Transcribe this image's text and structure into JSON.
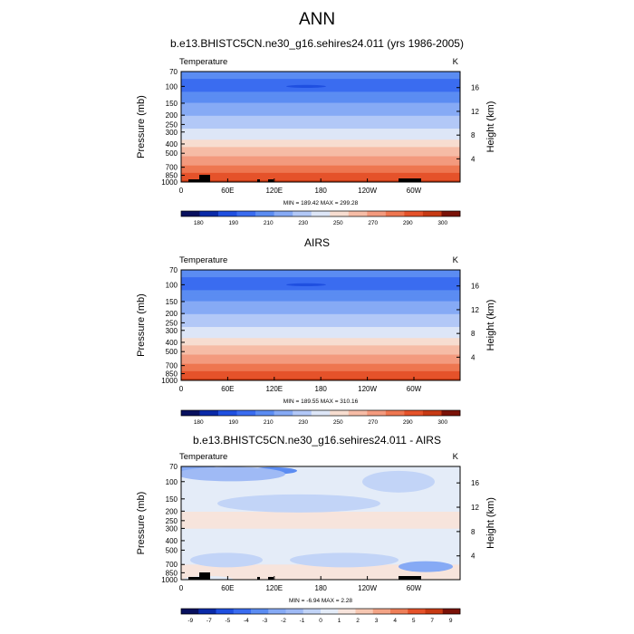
{
  "page_title": "ANN",
  "chart_data": [
    {
      "type": "heatmap",
      "title": "b.e13.BHISTC5CN.ne30_g16.sehires24.011 (yrs 1986-2005)",
      "variable": "Temperature",
      "units": "K",
      "ylabel": "Pressure (mb)",
      "y2label": "Height (km)",
      "x_ticks": [
        "0",
        "60E",
        "120E",
        "180",
        "120W",
        "60W"
      ],
      "p_ticks": [
        70,
        100,
        150,
        200,
        250,
        300,
        400,
        500,
        700,
        850,
        1000
      ],
      "h_ticks": [
        4,
        8,
        12,
        16
      ],
      "p_range": [
        70,
        1000
      ],
      "stats": "MIN = 189.42  MAX = 299.28",
      "colorbar_levels": [
        180,
        185,
        190,
        200,
        210,
        220,
        230,
        240,
        250,
        260,
        270,
        280,
        290,
        295,
        300
      ],
      "colorbar_labels": [
        "180",
        "190",
        "210",
        "230",
        "250",
        "270",
        "290",
        "300"
      ],
      "colors": [
        "#08105e",
        "#0a2aa8",
        "#1f4fe0",
        "#3a6cf0",
        "#5b8cf2",
        "#86aaf5",
        "#b2c8f7",
        "#dde6f7",
        "#f7ddd0",
        "#f6bca6",
        "#f39a7e",
        "#ee7650",
        "#e5522a",
        "#c73a14",
        "#7a1208"
      ],
      "profile_levels_mb": [
        70,
        100,
        150,
        200,
        250,
        300,
        400,
        500,
        700,
        850,
        1000
      ],
      "profile_values": [
        204,
        196,
        210,
        220,
        226,
        232,
        246,
        256,
        272,
        284,
        292
      ],
      "topography": true
    },
    {
      "type": "heatmap",
      "title": "AIRS",
      "variable": "Temperature",
      "units": "K",
      "ylabel": "Pressure (mb)",
      "y2label": "Height (km)",
      "x_ticks": [
        "0",
        "60E",
        "120E",
        "180",
        "120W",
        "60W"
      ],
      "p_ticks": [
        70,
        100,
        150,
        200,
        250,
        300,
        400,
        500,
        700,
        850,
        1000
      ],
      "h_ticks": [
        4,
        8,
        12,
        16
      ],
      "p_range": [
        70,
        1000
      ],
      "stats": "MIN = 189.55  MAX = 310.16",
      "colorbar_levels": [
        180,
        185,
        190,
        200,
        210,
        220,
        230,
        240,
        250,
        260,
        270,
        280,
        290,
        295,
        300
      ],
      "colorbar_labels": [
        "180",
        "190",
        "210",
        "230",
        "250",
        "270",
        "290",
        "300"
      ],
      "colors": [
        "#08105e",
        "#0a2aa8",
        "#1f4fe0",
        "#3a6cf0",
        "#5b8cf2",
        "#86aaf5",
        "#b2c8f7",
        "#dde6f7",
        "#f7ddd0",
        "#f6bca6",
        "#f39a7e",
        "#ee7650",
        "#e5522a",
        "#c73a14",
        "#7a1208"
      ],
      "profile_levels_mb": [
        70,
        100,
        150,
        200,
        250,
        300,
        400,
        500,
        700,
        850,
        1000
      ],
      "profile_values": [
        205,
        196,
        210,
        220,
        226,
        232,
        246,
        256,
        272,
        284,
        292
      ],
      "topography": false
    },
    {
      "type": "heatmap",
      "title": "b.e13.BHISTC5CN.ne30_g16.sehires24.011 - AIRS",
      "variable": "Temperature",
      "units": "K",
      "ylabel": "Pressure (mb)",
      "y2label": "Height (km)",
      "x_ticks": [
        "0",
        "60E",
        "120E",
        "180",
        "120W",
        "60W"
      ],
      "p_ticks": [
        70,
        100,
        150,
        200,
        250,
        300,
        400,
        500,
        700,
        850,
        1000
      ],
      "h_ticks": [
        4,
        8,
        12,
        16
      ],
      "p_range": [
        70,
        1000
      ],
      "stats": "MIN = -6.94  MAX =  2.28",
      "colorbar_levels": [
        -9,
        -8,
        -7,
        -6,
        -5,
        -4,
        -3,
        -2,
        -1,
        0,
        1,
        2,
        3,
        4,
        5,
        7,
        9
      ],
      "colorbar_labels": [
        "-9",
        "-7",
        "-5",
        "-4",
        "-3",
        "-2",
        "-1",
        "0",
        "1",
        "2",
        "3",
        "4",
        "5",
        "7",
        "9"
      ],
      "colors": [
        "#08105e",
        "#0a2aa8",
        "#1f4fe0",
        "#3a6cf0",
        "#5b8cf2",
        "#86aaf5",
        "#9fbaf5",
        "#c2d4f7",
        "#e4ecf8",
        "#f7e4dc",
        "#f6c7b2",
        "#f3a486",
        "#ee7e58",
        "#e5522a",
        "#c73a14",
        "#7a1208"
      ],
      "profile_levels_mb": [
        70,
        100,
        150,
        200,
        250,
        300,
        400,
        500,
        700,
        850,
        1000
      ],
      "profile_values": [
        -1,
        -1.5,
        -2,
        -1,
        -1,
        -1,
        -1.5,
        -1.5,
        -1,
        -1,
        -0.5
      ],
      "topography": true
    }
  ]
}
